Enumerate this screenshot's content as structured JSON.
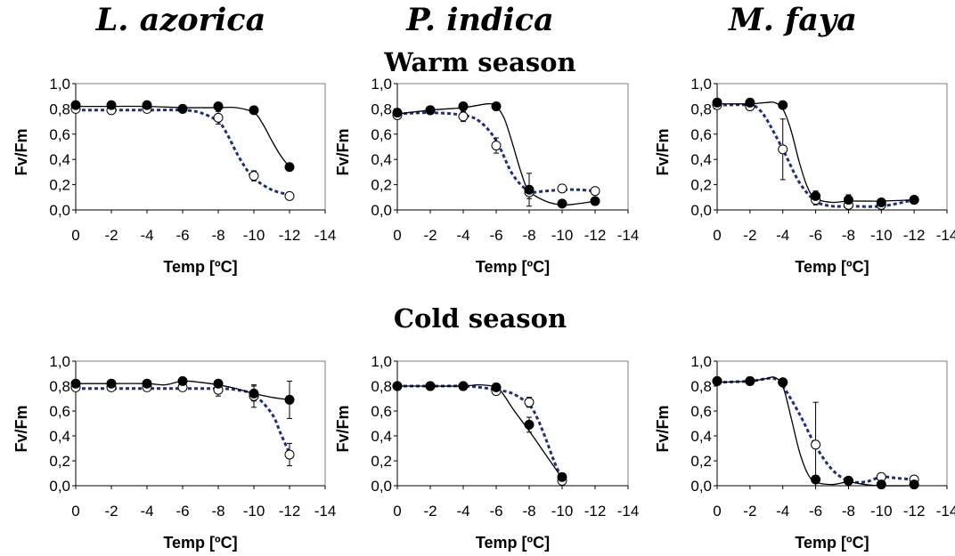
{
  "figure": {
    "species": [
      "L. azorica",
      "P. indica",
      "M. faya"
    ],
    "seasons": [
      "Warm season",
      "Cold season"
    ]
  },
  "chart_data": [
    {
      "type": "line",
      "season": "Warm season",
      "species": "L. azorica",
      "xlabel": "Temp [ºC]",
      "ylabel": "Fv/Fm",
      "xlim": [
        0,
        -14
      ],
      "ylim": [
        0,
        1.0
      ],
      "xticks": [
        0,
        -2,
        -4,
        -6,
        -8,
        -10,
        -12,
        -14
      ],
      "yticks": [
        0.0,
        0.2,
        0.4,
        0.6,
        0.8,
        1.0
      ],
      "series": [
        {
          "marker": "filled",
          "x": [
            0,
            -2,
            -4,
            -6,
            -8,
            -10,
            -12
          ],
          "y": [
            0.83,
            0.83,
            0.83,
            0.8,
            0.82,
            0.79,
            0.34
          ],
          "err": [
            0.02,
            0.01,
            0.01,
            0.01,
            0.01,
            0.02,
            0.03
          ],
          "fit": [
            [
              0,
              0.82
            ],
            [
              -2,
              0.82
            ],
            [
              -4,
              0.82
            ],
            [
              -6,
              0.81
            ],
            [
              -8,
              0.81
            ],
            [
              -9,
              0.81
            ],
            [
              -10,
              0.77
            ],
            [
              -10.5,
              0.68
            ],
            [
              -11,
              0.55
            ],
            [
              -11.5,
              0.43
            ],
            [
              -12,
              0.34
            ]
          ]
        },
        {
          "marker": "open",
          "x": [
            0,
            -2,
            -4,
            -6,
            -8,
            -10,
            -12
          ],
          "y": [
            0.8,
            0.79,
            0.8,
            0.8,
            0.73,
            0.27,
            0.11
          ],
          "err": [
            0.01,
            0.01,
            0.01,
            0.01,
            0.05,
            0.04,
            0.01
          ],
          "fit": [
            [
              0,
              0.79
            ],
            [
              -2,
              0.79
            ],
            [
              -4,
              0.79
            ],
            [
              -6,
              0.79
            ],
            [
              -7,
              0.77
            ],
            [
              -8,
              0.7
            ],
            [
              -8.5,
              0.6
            ],
            [
              -9,
              0.46
            ],
            [
              -9.5,
              0.34
            ],
            [
              -10,
              0.25
            ],
            [
              -11,
              0.16
            ],
            [
              -12,
              0.12
            ]
          ]
        }
      ]
    },
    {
      "type": "line",
      "season": "Warm season",
      "species": "P. indica",
      "xlabel": "Temp [ºC]",
      "ylabel": "Fv/Fm",
      "xlim": [
        0,
        -14
      ],
      "ylim": [
        0,
        1.0
      ],
      "xticks": [
        0,
        -2,
        -4,
        -6,
        -8,
        -10,
        -12,
        -14
      ],
      "yticks": [
        0.0,
        0.2,
        0.4,
        0.6,
        0.8,
        1.0
      ],
      "series": [
        {
          "marker": "filled",
          "x": [
            0,
            -2,
            -4,
            -6,
            -8,
            -10,
            -12
          ],
          "y": [
            0.77,
            0.79,
            0.82,
            0.82,
            0.16,
            0.05,
            0.07
          ],
          "err": [
            0.02,
            0.02,
            0.02,
            0.02,
            0.13,
            0.02,
            0.02
          ],
          "fit": [
            [
              0,
              0.76
            ],
            [
              -2,
              0.79
            ],
            [
              -4,
              0.81
            ],
            [
              -5.5,
              0.84
            ],
            [
              -6,
              0.82
            ],
            [
              -6.5,
              0.72
            ],
            [
              -7,
              0.52
            ],
            [
              -7.5,
              0.3
            ],
            [
              -8,
              0.15
            ],
            [
              -9,
              0.07
            ],
            [
              -10,
              0.04
            ],
            [
              -11,
              0.05
            ],
            [
              -12,
              0.07
            ]
          ]
        },
        {
          "marker": "open",
          "x": [
            0,
            -2,
            -4,
            -6,
            -8,
            -10,
            -12
          ],
          "y": [
            0.75,
            0.79,
            0.74,
            0.51,
            0.14,
            0.17,
            0.15
          ],
          "err": [
            0.03,
            0.02,
            0.04,
            0.06,
            0.05,
            0.03,
            0.03
          ],
          "fit": [
            [
              0,
              0.76
            ],
            [
              -2,
              0.77
            ],
            [
              -4,
              0.75
            ],
            [
              -5,
              0.7
            ],
            [
              -6,
              0.55
            ],
            [
              -7,
              0.28
            ],
            [
              -8,
              0.15
            ],
            [
              -9,
              0.15
            ],
            [
              -10,
              0.16
            ],
            [
              -11,
              0.16
            ],
            [
              -12,
              0.15
            ]
          ]
        }
      ]
    },
    {
      "type": "line",
      "season": "Warm season",
      "species": "M. faya",
      "xlabel": "Temp [ºC]",
      "ylabel": "Fv/Fm",
      "xlim": [
        0,
        -14
      ],
      "ylim": [
        0,
        1.0
      ],
      "xticks": [
        0,
        -2,
        -4,
        -6,
        -8,
        -10,
        -12,
        -14
      ],
      "yticks": [
        0.0,
        0.2,
        0.4,
        0.6,
        0.8,
        1.0
      ],
      "series": [
        {
          "marker": "filled",
          "x": [
            0,
            -2,
            -4,
            -6,
            -8,
            -10,
            -12
          ],
          "y": [
            0.85,
            0.85,
            0.83,
            0.11,
            0.08,
            0.06,
            0.08
          ],
          "err": [
            0.02,
            0.02,
            0.02,
            0.04,
            0.04,
            0.02,
            0.02
          ],
          "fit": [
            [
              0,
              0.84
            ],
            [
              -2,
              0.84
            ],
            [
              -3,
              0.85
            ],
            [
              -3.5,
              0.85
            ],
            [
              -4,
              0.8
            ],
            [
              -4.5,
              0.63
            ],
            [
              -5,
              0.38
            ],
            [
              -5.5,
              0.18
            ],
            [
              -6,
              0.09
            ],
            [
              -7,
              0.06
            ],
            [
              -8,
              0.07
            ],
            [
              -10,
              0.07
            ],
            [
              -12,
              0.08
            ]
          ]
        },
        {
          "marker": "open",
          "x": [
            0,
            -2,
            -4,
            -6,
            -8,
            -10,
            -12
          ],
          "y": [
            0.83,
            0.82,
            0.48,
            0.08,
            0.04,
            0.04,
            0.08
          ],
          "err": [
            0.02,
            0.02,
            0.24,
            0.04,
            0.02,
            0.01,
            0.02
          ],
          "fit": [
            [
              0,
              0.83
            ],
            [
              -2,
              0.83
            ],
            [
              -2.5,
              0.8
            ],
            [
              -3,
              0.72
            ],
            [
              -4,
              0.48
            ],
            [
              -5,
              0.22
            ],
            [
              -6,
              0.07
            ],
            [
              -7,
              0.03
            ],
            [
              -8,
              0.03
            ],
            [
              -10,
              0.03
            ],
            [
              -12,
              0.08
            ]
          ]
        }
      ]
    },
    {
      "type": "line",
      "season": "Cold season",
      "species": "L. azorica",
      "xlabel": "Temp [ºC]",
      "ylabel": "Fv/Fm",
      "xlim": [
        0,
        -14
      ],
      "ylim": [
        0,
        1.0
      ],
      "xticks": [
        0,
        -2,
        -4,
        -6,
        -8,
        -10,
        -12,
        -14
      ],
      "yticks": [
        0.0,
        0.2,
        0.4,
        0.6,
        0.8,
        1.0
      ],
      "series": [
        {
          "marker": "filled",
          "x": [
            0,
            -2,
            -4,
            -6,
            -8,
            -10,
            -12
          ],
          "y": [
            0.82,
            0.82,
            0.82,
            0.84,
            0.82,
            0.74,
            0.69
          ],
          "err": [
            0.02,
            0.02,
            0.02,
            0.02,
            0.02,
            0.06,
            0.15
          ],
          "fit": [
            [
              0,
              0.82
            ],
            [
              -2,
              0.82
            ],
            [
              -4,
              0.82
            ],
            [
              -5,
              0.81
            ],
            [
              -6,
              0.84
            ],
            [
              -7,
              0.83
            ],
            [
              -8,
              0.81
            ],
            [
              -9,
              0.78
            ],
            [
              -10,
              0.74
            ],
            [
              -11,
              0.71
            ],
            [
              -12,
              0.69
            ]
          ]
        },
        {
          "marker": "open",
          "x": [
            0,
            -2,
            -4,
            -6,
            -8,
            -10,
            -12
          ],
          "y": [
            0.79,
            0.79,
            0.79,
            0.79,
            0.77,
            0.72,
            0.25
          ],
          "err": [
            0.02,
            0.02,
            0.02,
            0.02,
            0.05,
            0.09,
            0.09
          ],
          "fit": [
            [
              0,
              0.78
            ],
            [
              -2,
              0.78
            ],
            [
              -4,
              0.78
            ],
            [
              -6,
              0.78
            ],
            [
              -8,
              0.78
            ],
            [
              -9,
              0.77
            ],
            [
              -10,
              0.73
            ],
            [
              -11,
              0.58
            ],
            [
              -11.5,
              0.42
            ],
            [
              -12,
              0.26
            ]
          ]
        }
      ]
    },
    {
      "type": "line",
      "season": "Cold season",
      "species": "P. indica",
      "xlabel": "Temp [ºC]",
      "ylabel": "Fv/Fm",
      "xlim": [
        0,
        -14
      ],
      "ylim": [
        0,
        1.0
      ],
      "xticks": [
        0,
        -2,
        -4,
        -6,
        -8,
        -10,
        -12,
        -14
      ],
      "yticks": [
        0.0,
        0.2,
        0.4,
        0.6,
        0.8,
        1.0
      ],
      "series": [
        {
          "marker": "filled",
          "x": [
            0,
            -2,
            -4,
            -6,
            -8,
            -10
          ],
          "y": [
            0.8,
            0.8,
            0.8,
            0.79,
            0.49,
            0.07
          ],
          "err": [
            0.01,
            0.01,
            0.01,
            0.01,
            0.06,
            0.02
          ],
          "fit": [
            [
              0,
              0.8
            ],
            [
              -2,
              0.8
            ],
            [
              -4,
              0.8
            ],
            [
              -5,
              0.81
            ],
            [
              -6,
              0.79
            ],
            [
              -6.5,
              0.72
            ],
            [
              -7,
              0.62
            ],
            [
              -8,
              0.44
            ],
            [
              -9,
              0.25
            ],
            [
              -10,
              0.06
            ]
          ]
        },
        {
          "marker": "open",
          "x": [
            0,
            -2,
            -4,
            -6,
            -8,
            -10
          ],
          "y": [
            0.8,
            0.8,
            0.8,
            0.76,
            0.67,
            0.04
          ],
          "err": [
            0.01,
            0.01,
            0.01,
            0.02,
            0.04,
            0.02
          ],
          "fit": [
            [
              0,
              0.8
            ],
            [
              -2,
              0.8
            ],
            [
              -4,
              0.8
            ],
            [
              -5,
              0.79
            ],
            [
              -6,
              0.77
            ],
            [
              -7,
              0.74
            ],
            [
              -8,
              0.65
            ],
            [
              -8.5,
              0.54
            ],
            [
              -9,
              0.38
            ],
            [
              -9.5,
              0.2
            ],
            [
              -10,
              0.05
            ]
          ]
        }
      ]
    },
    {
      "type": "line",
      "season": "Cold season",
      "species": "M. faya",
      "xlabel": "Temp [ºC]",
      "ylabel": "Fv/Fm",
      "xlim": [
        0,
        -14
      ],
      "ylim": [
        0,
        1.0
      ],
      "xticks": [
        0,
        -2,
        -4,
        -6,
        -8,
        -10,
        -12,
        -14
      ],
      "yticks": [
        0.0,
        0.2,
        0.4,
        0.6,
        0.8,
        1.0
      ],
      "series": [
        {
          "marker": "filled",
          "x": [
            0,
            -2,
            -4,
            -6,
            -8,
            -10,
            -12
          ],
          "y": [
            0.84,
            0.84,
            0.83,
            0.05,
            0.04,
            0.01,
            0.01
          ],
          "err": [
            0.02,
            0.02,
            0.02,
            0.03,
            0.02,
            0.01,
            0.01
          ],
          "fit": [
            [
              0,
              0.83
            ],
            [
              -2,
              0.84
            ],
            [
              -3,
              0.86
            ],
            [
              -3.5,
              0.87
            ],
            [
              -4,
              0.8
            ],
            [
              -4.5,
              0.55
            ],
            [
              -5,
              0.28
            ],
            [
              -5.5,
              0.1
            ],
            [
              -6,
              0.03
            ],
            [
              -7,
              0.01
            ],
            [
              -8,
              0.03
            ],
            [
              -9,
              0.01
            ],
            [
              -10,
              0.0
            ],
            [
              -12,
              0.0
            ]
          ]
        },
        {
          "marker": "open",
          "x": [
            0,
            -2,
            -4,
            -6,
            -8,
            -10,
            -12
          ],
          "y": [
            0.84,
            0.84,
            0.83,
            0.33,
            0.04,
            0.07,
            0.05
          ],
          "err": [
            0.02,
            0.02,
            0.02,
            0.34,
            0.02,
            0.02,
            0.02
          ],
          "fit": [
            [
              0,
              0.83
            ],
            [
              -2,
              0.84
            ],
            [
              -3,
              0.86
            ],
            [
              -3.5,
              0.86
            ],
            [
              -4,
              0.8
            ],
            [
              -5,
              0.58
            ],
            [
              -6,
              0.32
            ],
            [
              -7,
              0.13
            ],
            [
              -8,
              0.04
            ],
            [
              -9,
              0.03
            ],
            [
              -10,
              0.07
            ],
            [
              -11,
              0.06
            ],
            [
              -12,
              0.05
            ]
          ]
        }
      ]
    }
  ]
}
